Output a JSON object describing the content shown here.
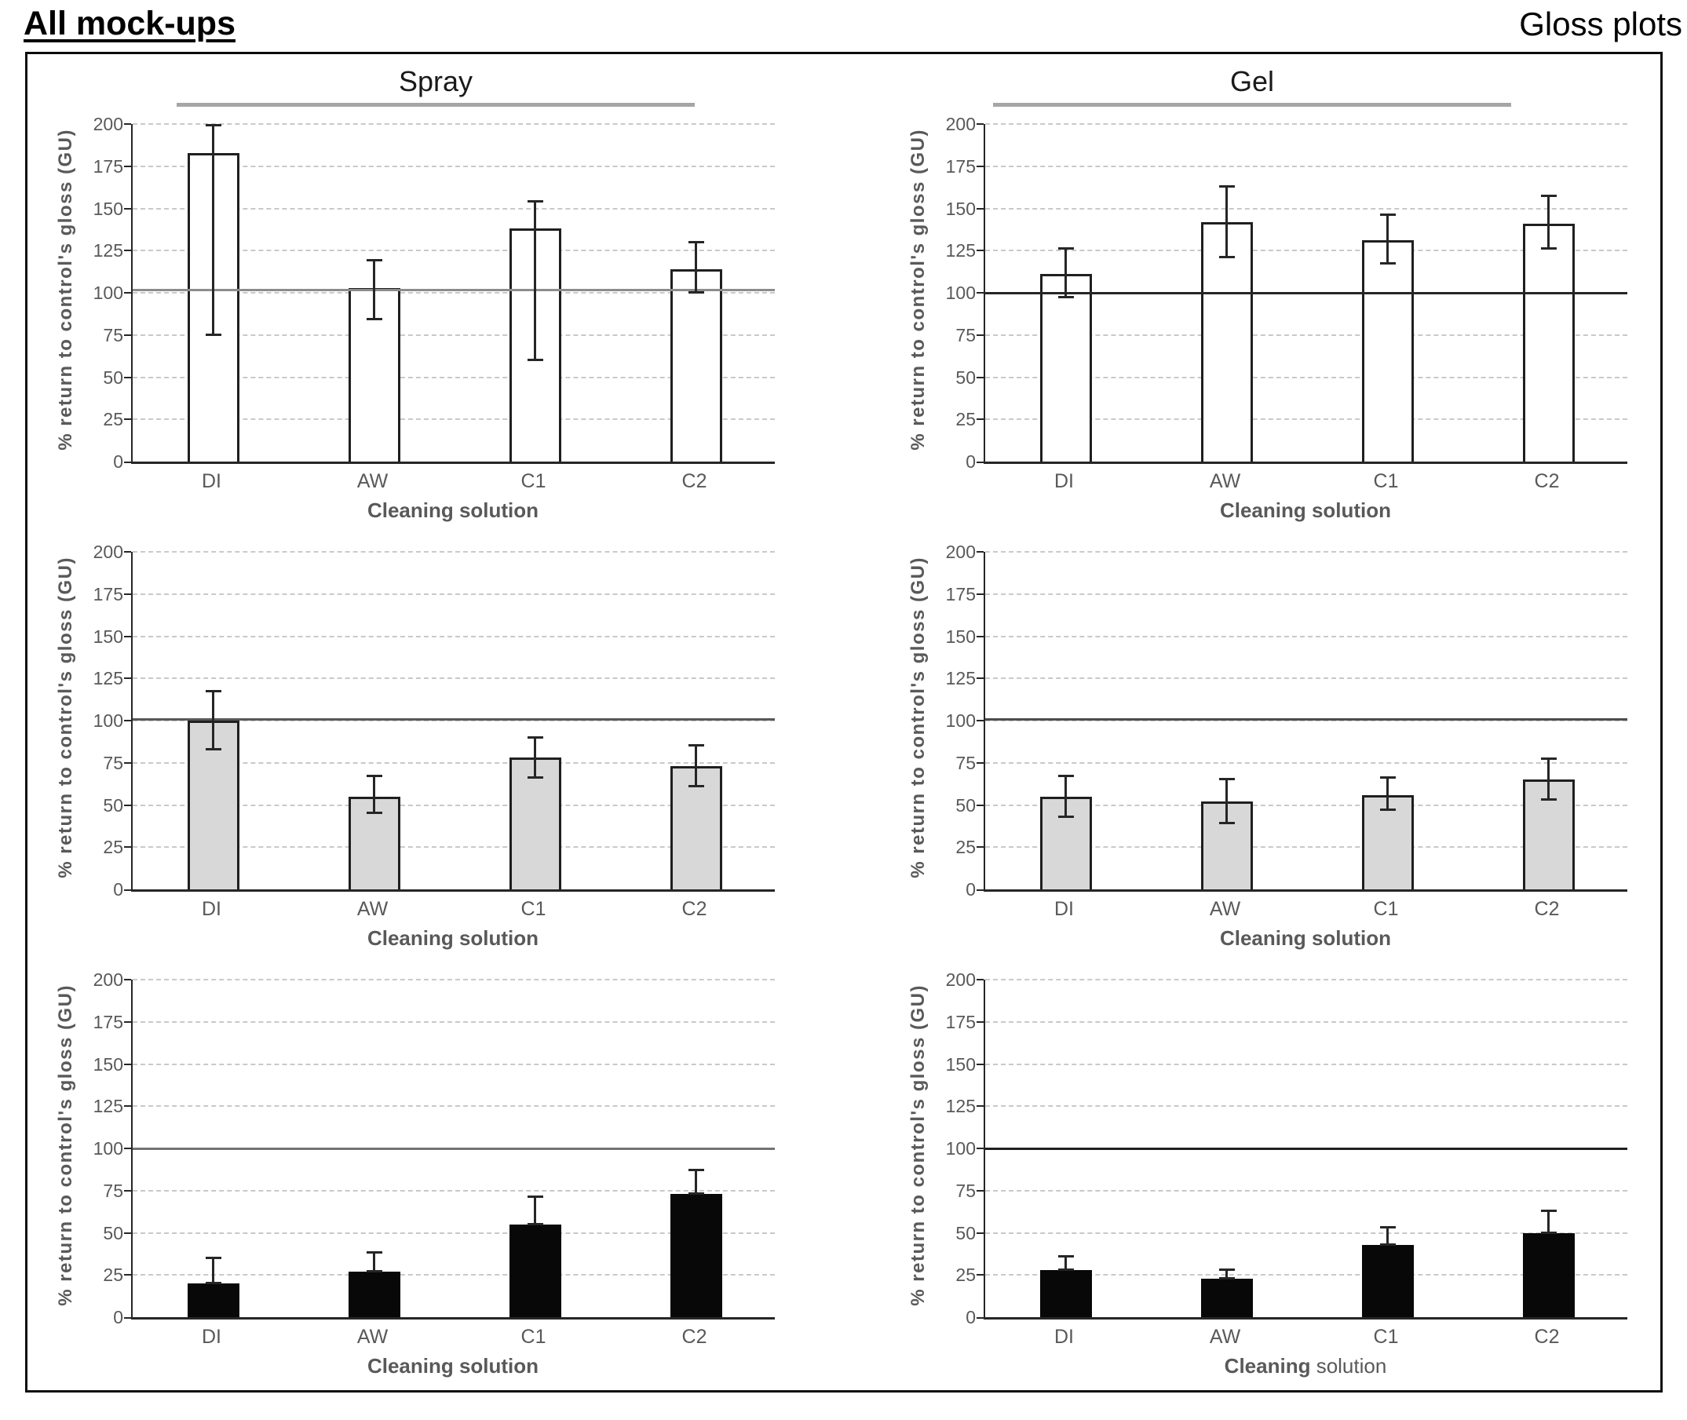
{
  "page": {
    "title_left": "All mock-ups",
    "title_right": "Gloss plots"
  },
  "columns": {
    "left": "Spray",
    "right": "Gel"
  },
  "colors": {
    "grid": "#c9c9c9",
    "axis": "#262626",
    "text_gray": "#595959",
    "bar_white": "#ffffff",
    "bar_gray": "#d8d8d8",
    "bar_black": "#080808",
    "bar_border": "#1f1f1f",
    "header_underline": "#a6a6a6"
  },
  "axis": {
    "y_label": "% return to control's gloss (GU)",
    "y_ticks": [
      0,
      25,
      50,
      75,
      100,
      125,
      150,
      175,
      200
    ],
    "ylim": [
      0,
      200
    ],
    "x_categories": [
      "DI",
      "AW",
      "C1",
      "C2"
    ]
  },
  "chart_data": [
    {
      "id": "spray-top",
      "type": "bar",
      "column": "Spray",
      "row": 1,
      "bar_style": "white",
      "title": "",
      "xlabel": "Cleaning solution",
      "ylabel": "% return to control's gloss (GU)",
      "ylim": [
        0,
        200
      ],
      "grid": true,
      "legend": "none",
      "categories": [
        "DI",
        "AW",
        "C1",
        "C2"
      ],
      "values": [
        183,
        103,
        138,
        114
      ],
      "error_low": [
        75,
        84,
        60,
        100
      ],
      "error_high": [
        199,
        119,
        154,
        130
      ],
      "reference_line": 102,
      "reference_color": "#8c8c8c",
      "x_title_parts": [
        {
          "text": "Cleaning solution",
          "bold": true
        }
      ]
    },
    {
      "id": "gel-top",
      "type": "bar",
      "column": "Gel",
      "row": 1,
      "bar_style": "white",
      "title": "",
      "xlabel": "Cleaning solution",
      "ylabel": "% return to control's gloss (GU)",
      "ylim": [
        0,
        200
      ],
      "grid": true,
      "legend": "none",
      "categories": [
        "DI",
        "AW",
        "C1",
        "C2"
      ],
      "values": [
        111,
        142,
        131,
        141
      ],
      "error_low": [
        97,
        121,
        117,
        126
      ],
      "error_high": [
        126,
        163,
        146,
        157
      ],
      "reference_line": 100,
      "reference_color": "#262626",
      "x_title_parts": [
        {
          "text": "Cleaning solution",
          "bold": true
        }
      ]
    },
    {
      "id": "spray-middle",
      "type": "bar",
      "column": "Spray",
      "row": 2,
      "bar_style": "gray",
      "title": "",
      "xlabel": "Cleaning solution",
      "ylabel": "% return to control's gloss (GU)",
      "ylim": [
        0,
        200
      ],
      "grid": true,
      "legend": "none",
      "categories": [
        "DI",
        "AW",
        "C1",
        "C2"
      ],
      "values": [
        100,
        55,
        78,
        73
      ],
      "error_low": [
        83,
        45,
        66,
        61
      ],
      "error_high": [
        117,
        67,
        90,
        85
      ],
      "reference_line": 101,
      "reference_color": "#595959",
      "x_title_parts": [
        {
          "text": "Cleaning solution",
          "bold": true
        }
      ]
    },
    {
      "id": "gel-middle",
      "type": "bar",
      "column": "Gel",
      "row": 2,
      "bar_style": "gray",
      "title": "",
      "xlabel": "Cleaning solution",
      "ylabel": "% return to control's gloss (GU)",
      "ylim": [
        0,
        200
      ],
      "grid": true,
      "legend": "none",
      "categories": [
        "DI",
        "AW",
        "C1",
        "C2"
      ],
      "values": [
        55,
        52,
        56,
        65
      ],
      "error_low": [
        43,
        39,
        47,
        53
      ],
      "error_high": [
        67,
        65,
        66,
        77
      ],
      "reference_line": 101,
      "reference_color": "#4d4d4d",
      "x_title_parts": [
        {
          "text": "Cleaning solution",
          "bold": true
        }
      ]
    },
    {
      "id": "spray-bottom",
      "type": "bar",
      "column": "Spray",
      "row": 3,
      "bar_style": "black",
      "title": "",
      "xlabel": "Cleaning solution",
      "ylabel": "% return to control's gloss (GU)",
      "ylim": [
        0,
        200
      ],
      "grid": true,
      "legend": "none",
      "categories": [
        "DI",
        "AW",
        "C1",
        "C2"
      ],
      "values": [
        20,
        27,
        55,
        73
      ],
      "error_low": [
        20,
        27,
        55,
        73
      ],
      "error_high": [
        35,
        38,
        71,
        87
      ],
      "reference_line": 100,
      "reference_color": "#737373",
      "x_title_parts": [
        {
          "text": "Cleaning solution",
          "bold": true
        }
      ]
    },
    {
      "id": "gel-bottom",
      "type": "bar",
      "column": "Gel",
      "row": 3,
      "bar_style": "black",
      "title": "",
      "xlabel": "Cleaning solution",
      "ylabel": "% return to control's gloss (GU)",
      "ylim": [
        0,
        200
      ],
      "grid": true,
      "legend": "none",
      "categories": [
        "DI",
        "AW",
        "C1",
        "C2"
      ],
      "values": [
        28,
        23,
        43,
        50
      ],
      "error_low": [
        28,
        23,
        43,
        50
      ],
      "error_high": [
        36,
        28,
        53,
        63
      ],
      "reference_line": 100,
      "reference_color": "#1f1f1f",
      "x_title_parts": [
        {
          "text": "Cleaning",
          "bold": true
        },
        {
          "text": " solution",
          "bold": false
        }
      ]
    }
  ]
}
